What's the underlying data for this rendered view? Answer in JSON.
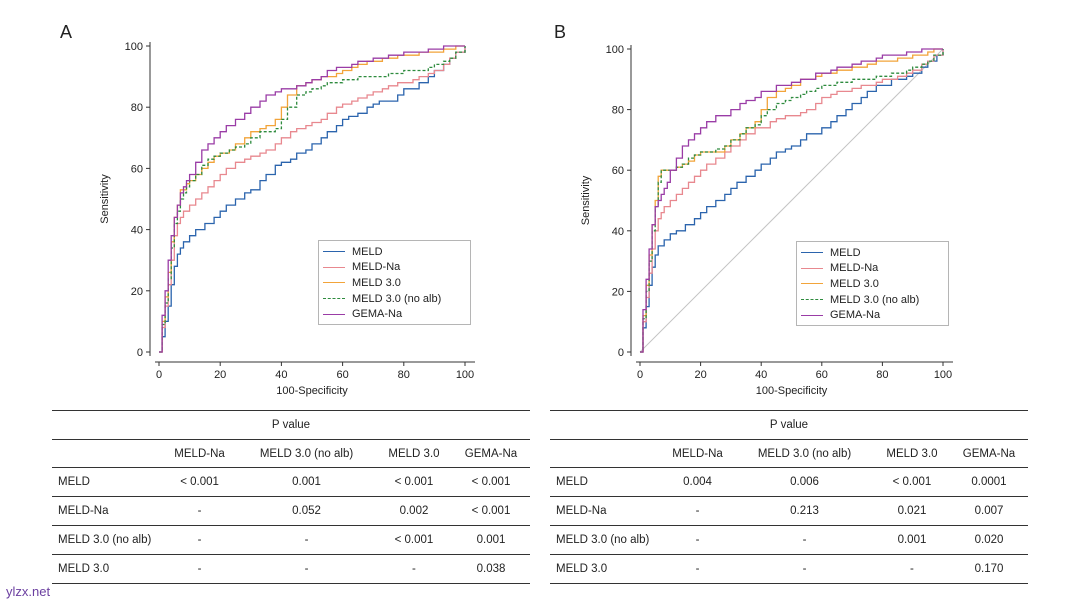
{
  "chart_data": [
    {
      "type": "line",
      "panel": "A",
      "xlabel": "100-Specificity",
      "ylabel": "Sensitivity",
      "xlim": [
        0,
        100
      ],
      "ylim": [
        0,
        100
      ],
      "xticks": [
        "0",
        "20",
        "40",
        "60",
        "80",
        "100"
      ],
      "yticks": [
        "0",
        "20",
        "40",
        "60",
        "80",
        "100"
      ],
      "reference_line": false,
      "series": [
        {
          "name": "MELD",
          "color": "#2b64ad",
          "dash": false,
          "x": [
            0,
            1,
            2,
            3,
            4,
            5,
            6,
            7,
            8,
            10,
            12,
            15,
            18,
            20,
            22,
            25,
            28,
            30,
            33,
            35,
            38,
            40,
            43,
            45,
            48,
            50,
            53,
            55,
            58,
            60,
            62,
            65,
            68,
            70,
            72,
            75,
            78,
            80,
            85,
            88,
            90,
            93,
            95,
            97,
            100
          ],
          "y": [
            0,
            5,
            10,
            15,
            22,
            28,
            32,
            34,
            36,
            38,
            40,
            42,
            44,
            46,
            48,
            50,
            52,
            53,
            56,
            58,
            61,
            62,
            63,
            65,
            66,
            68,
            70,
            72,
            74,
            76,
            77,
            78,
            80,
            81,
            82,
            82,
            84,
            86,
            88,
            90,
            92,
            94,
            96,
            98,
            100
          ]
        },
        {
          "name": "MELD-Na",
          "color": "#e8888f",
          "dash": false,
          "x": [
            0,
            1,
            2,
            3,
            4,
            5,
            6,
            7,
            8,
            10,
            12,
            14,
            16,
            18,
            20,
            22,
            25,
            28,
            30,
            33,
            35,
            38,
            40,
            43,
            45,
            48,
            50,
            53,
            55,
            58,
            60,
            63,
            65,
            68,
            70,
            73,
            75,
            78,
            80,
            83,
            85,
            88,
            90,
            93,
            95,
            97,
            100
          ],
          "y": [
            0,
            8,
            15,
            22,
            30,
            38,
            42,
            44,
            46,
            48,
            50,
            52,
            54,
            56,
            58,
            60,
            62,
            63,
            64,
            65,
            66,
            68,
            70,
            72,
            73,
            74,
            75,
            76,
            78,
            80,
            81,
            82,
            83,
            84,
            85,
            86,
            87,
            88,
            88,
            89,
            90,
            91,
            92,
            94,
            96,
            98,
            100
          ]
        },
        {
          "name": "MELD 3.0",
          "color": "#f2a43a",
          "dash": false,
          "x": [
            0,
            1,
            2,
            3,
            4,
            5,
            6,
            7,
            8,
            9,
            10,
            12,
            14,
            16,
            18,
            20,
            23,
            25,
            28,
            30,
            33,
            35,
            38,
            40,
            42,
            45,
            48,
            50,
            53,
            55,
            58,
            60,
            63,
            65,
            68,
            70,
            73,
            75,
            78,
            80,
            83,
            85,
            88,
            90,
            93,
            95,
            97,
            100
          ],
          "y": [
            0,
            10,
            18,
            26,
            36,
            44,
            48,
            53,
            53,
            55,
            56,
            58,
            60,
            62,
            64,
            65,
            66,
            68,
            70,
            72,
            73,
            74,
            76,
            80,
            84,
            87,
            88,
            89,
            90,
            90,
            91,
            92,
            93,
            94,
            95,
            95,
            96,
            96,
            97,
            97,
            97,
            98,
            98,
            98,
            99,
            99,
            100,
            100
          ]
        },
        {
          "name": "MELD 3.0 (no alb)",
          "color": "#2e8b3e",
          "dash": true,
          "x": [
            0,
            1,
            2,
            3,
            4,
            5,
            6,
            7,
            8,
            9,
            10,
            12,
            14,
            16,
            18,
            20,
            23,
            25,
            28,
            30,
            33,
            35,
            38,
            40,
            42,
            45,
            48,
            50,
            53,
            55,
            58,
            60,
            63,
            65,
            68,
            70,
            73,
            75,
            78,
            80,
            83,
            85,
            88,
            90,
            93,
            95,
            97,
            100
          ],
          "y": [
            0,
            9,
            16,
            24,
            34,
            42,
            46,
            50,
            52,
            54,
            56,
            58,
            61,
            63,
            64,
            65,
            66,
            67,
            68,
            70,
            72,
            72,
            73,
            76,
            80,
            84,
            85,
            86,
            87,
            88,
            88,
            89,
            89,
            90,
            90,
            90,
            90,
            91,
            91,
            92,
            92,
            92,
            93,
            94,
            95,
            96,
            98,
            100
          ]
        },
        {
          "name": "GEMA-Na",
          "color": "#9a3ca6",
          "dash": false,
          "x": [
            0,
            1,
            2,
            3,
            4,
            5,
            6,
            7,
            8,
            9,
            10,
            12,
            14,
            16,
            18,
            20,
            22,
            25,
            28,
            30,
            33,
            35,
            38,
            40,
            42,
            45,
            48,
            50,
            53,
            55,
            58,
            60,
            63,
            65,
            68,
            70,
            73,
            75,
            78,
            80,
            83,
            85,
            88,
            90,
            93,
            95,
            97,
            100
          ],
          "y": [
            0,
            12,
            20,
            30,
            38,
            44,
            48,
            52,
            54,
            56,
            58,
            62,
            66,
            68,
            70,
            72,
            74,
            76,
            78,
            80,
            82,
            84,
            85,
            86,
            86,
            87,
            88,
            89,
            90,
            92,
            93,
            93,
            94,
            95,
            95,
            96,
            96,
            97,
            97,
            98,
            98,
            98,
            99,
            99,
            100,
            100,
            100,
            100
          ]
        }
      ]
    },
    {
      "type": "line",
      "panel": "B",
      "xlabel": "100-Specificity",
      "ylabel": "Sensitivity",
      "xlim": [
        0,
        100
      ],
      "ylim": [
        0,
        100
      ],
      "xticks": [
        "0",
        "20",
        "40",
        "60",
        "80",
        "100"
      ],
      "yticks": [
        "0",
        "20",
        "40",
        "60",
        "80",
        "100"
      ],
      "reference_line": true,
      "series": [
        {
          "name": "MELD",
          "color": "#2b64ad",
          "dash": false,
          "x": [
            0,
            1,
            2,
            3,
            4,
            5,
            6,
            8,
            10,
            12,
            15,
            18,
            20,
            22,
            25,
            28,
            30,
            32,
            35,
            38,
            40,
            43,
            45,
            48,
            50,
            53,
            55,
            58,
            60,
            63,
            65,
            68,
            70,
            73,
            75,
            78,
            80,
            83,
            85,
            88,
            90,
            93,
            95,
            98,
            100
          ],
          "y": [
            0,
            8,
            15,
            22,
            28,
            32,
            35,
            37,
            39,
            40,
            42,
            44,
            46,
            48,
            50,
            52,
            54,
            56,
            58,
            60,
            62,
            64,
            66,
            67,
            68,
            70,
            72,
            72,
            74,
            76,
            78,
            80,
            82,
            84,
            86,
            88,
            88,
            90,
            90,
            91,
            92,
            94,
            96,
            98,
            100
          ]
        },
        {
          "name": "MELD-Na",
          "color": "#e8888f",
          "dash": false,
          "x": [
            0,
            1,
            2,
            3,
            4,
            5,
            6,
            7,
            8,
            10,
            12,
            14,
            16,
            18,
            20,
            22,
            25,
            28,
            30,
            33,
            35,
            38,
            40,
            43,
            45,
            48,
            50,
            53,
            55,
            58,
            60,
            63,
            65,
            68,
            70,
            73,
            75,
            78,
            80,
            83,
            85,
            88,
            90,
            93,
            95,
            97,
            100
          ],
          "y": [
            0,
            10,
            18,
            26,
            34,
            40,
            44,
            46,
            48,
            50,
            52,
            54,
            56,
            58,
            60,
            62,
            64,
            66,
            68,
            70,
            72,
            74,
            74,
            76,
            77,
            78,
            78,
            79,
            80,
            82,
            84,
            85,
            86,
            86,
            87,
            88,
            88,
            89,
            90,
            90,
            91,
            92,
            93,
            95,
            96,
            98,
            100
          ]
        },
        {
          "name": "MELD 3.0",
          "color": "#f2a43a",
          "dash": false,
          "x": [
            0,
            1,
            2,
            3,
            4,
            5,
            6,
            7,
            8,
            9,
            10,
            12,
            14,
            16,
            18,
            20,
            23,
            25,
            28,
            30,
            33,
            35,
            38,
            40,
            42,
            45,
            48,
            50,
            53,
            55,
            58,
            60,
            63,
            65,
            68,
            70,
            73,
            75,
            78,
            80,
            83,
            85,
            88,
            90,
            93,
            95,
            97,
            100
          ],
          "y": [
            0,
            12,
            22,
            32,
            42,
            50,
            58,
            60,
            60,
            60,
            60,
            61,
            62,
            63,
            65,
            66,
            66,
            66,
            68,
            70,
            72,
            74,
            76,
            80,
            84,
            86,
            87,
            88,
            90,
            90,
            91,
            92,
            92,
            93,
            93,
            94,
            94,
            95,
            96,
            96,
            96,
            97,
            97,
            98,
            98,
            99,
            100,
            100
          ]
        },
        {
          "name": "MELD 3.0 (no alb)",
          "color": "#2e8b3e",
          "dash": true,
          "x": [
            0,
            1,
            2,
            3,
            4,
            5,
            6,
            7,
            8,
            9,
            10,
            12,
            14,
            16,
            18,
            20,
            23,
            25,
            28,
            30,
            33,
            35,
            38,
            40,
            42,
            45,
            48,
            50,
            53,
            55,
            58,
            60,
            63,
            65,
            68,
            70,
            73,
            75,
            78,
            80,
            83,
            85,
            88,
            90,
            93,
            95,
            97,
            100
          ],
          "y": [
            0,
            11,
            20,
            30,
            40,
            48,
            56,
            60,
            60,
            60,
            60,
            61,
            62,
            64,
            65,
            66,
            66,
            67,
            68,
            70,
            72,
            74,
            75,
            78,
            80,
            82,
            83,
            84,
            85,
            86,
            87,
            88,
            88,
            89,
            89,
            90,
            90,
            90,
            91,
            91,
            92,
            92,
            93,
            94,
            95,
            96,
            98,
            100
          ]
        },
        {
          "name": "GEMA-Na",
          "color": "#9a3ca6",
          "dash": false,
          "x": [
            0,
            1,
            2,
            3,
            4,
            5,
            6,
            7,
            8,
            9,
            10,
            12,
            14,
            16,
            18,
            20,
            22,
            25,
            28,
            30,
            33,
            35,
            38,
            40,
            42,
            45,
            48,
            50,
            53,
            55,
            58,
            60,
            63,
            65,
            68,
            70,
            73,
            75,
            78,
            80,
            83,
            85,
            88,
            90,
            93,
            95,
            97,
            100
          ],
          "y": [
            0,
            14,
            24,
            34,
            42,
            48,
            50,
            52,
            54,
            56,
            60,
            64,
            68,
            70,
            72,
            74,
            76,
            78,
            78,
            80,
            82,
            83,
            84,
            86,
            86,
            88,
            88,
            89,
            90,
            90,
            92,
            92,
            93,
            94,
            94,
            95,
            96,
            96,
            97,
            98,
            98,
            98,
            99,
            99,
            100,
            100,
            100,
            100
          ]
        }
      ]
    }
  ],
  "panels": {
    "A": {
      "letter": "A",
      "legend": [
        "MELD",
        "MELD-Na",
        "MELD 3.0",
        "MELD 3.0 (no alb)",
        "GEMA-Na"
      ],
      "table": {
        "title": "P  value",
        "columns": [
          "MELD-Na",
          "MELD 3.0 (no alb)",
          "MELD 3.0",
          "GEMA-Na"
        ],
        "rows": [
          {
            "label": "MELD",
            "values": [
              "< 0.001",
              "0.001",
              "< 0.001",
              "< 0.001"
            ]
          },
          {
            "label": "MELD-Na",
            "values": [
              "-",
              "0.052",
              "0.002",
              "< 0.001"
            ]
          },
          {
            "label": "MELD 3.0 (no alb)",
            "values": [
              "-",
              "-",
              "< 0.001",
              "0.001"
            ]
          },
          {
            "label": "MELD 3.0",
            "values": [
              "-",
              "-",
              "-",
              "0.038"
            ]
          }
        ]
      }
    },
    "B": {
      "letter": "B",
      "legend": [
        "MELD",
        "MELD-Na",
        "MELD 3.0",
        "MELD 3.0 (no alb)",
        "GEMA-Na"
      ],
      "table": {
        "title": "P  value",
        "columns": [
          "MELD-Na",
          "MELD 3.0 (no alb)",
          "MELD 3.0",
          "GEMA-Na"
        ],
        "rows": [
          {
            "label": "MELD",
            "values": [
              "0.004",
              "0.006",
              "< 0.001",
              "0.0001"
            ]
          },
          {
            "label": "MELD-Na",
            "values": [
              "-",
              "0.213",
              "0.021",
              "0.007"
            ]
          },
          {
            "label": "MELD 3.0 (no alb)",
            "values": [
              "-",
              "-",
              "0.001",
              "0.020"
            ]
          },
          {
            "label": "MELD 3.0",
            "values": [
              "-",
              "-",
              "-",
              "0.170"
            ]
          }
        ]
      }
    }
  },
  "watermark": "ylzx.net"
}
